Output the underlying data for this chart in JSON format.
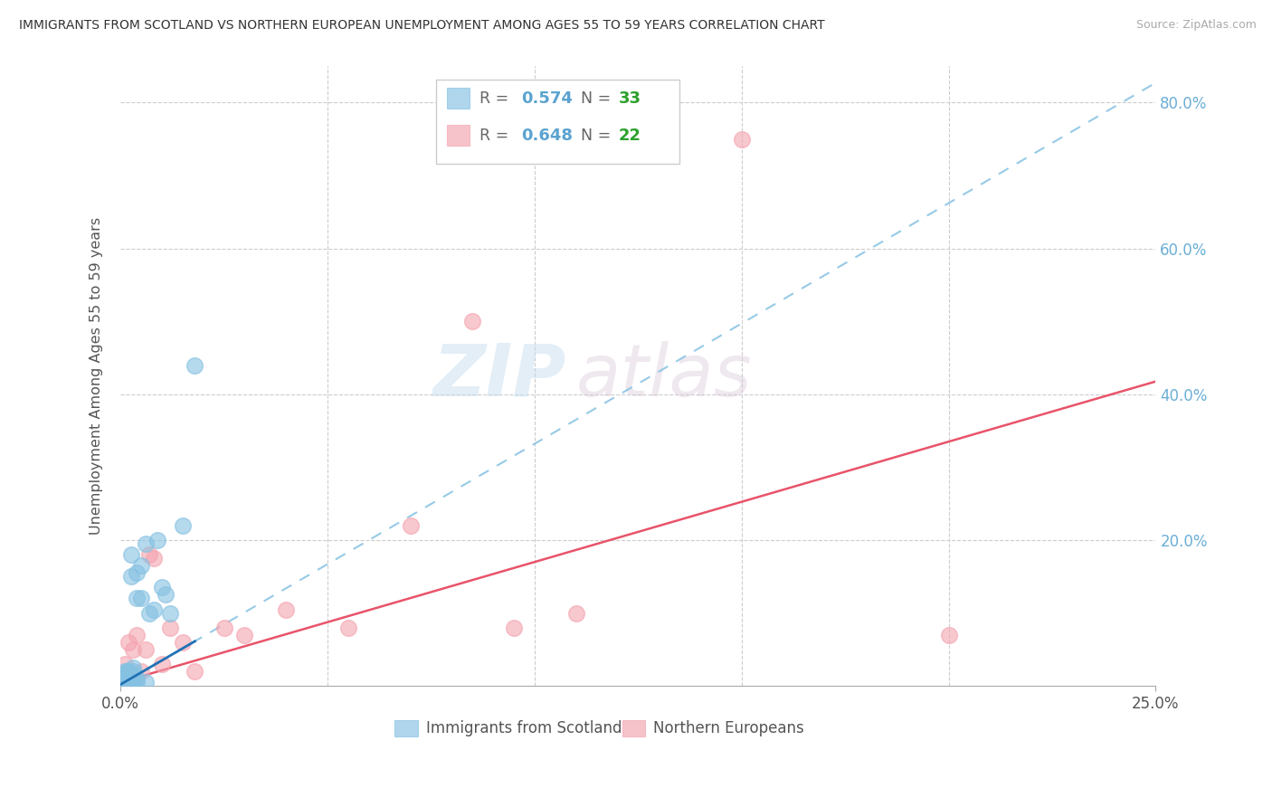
{
  "title": "IMMIGRANTS FROM SCOTLAND VS NORTHERN EUROPEAN UNEMPLOYMENT AMONG AGES 55 TO 59 YEARS CORRELATION CHART",
  "source": "Source: ZipAtlas.com",
  "ylabel": "Unemployment Among Ages 55 to 59 years",
  "xlim": [
    0,
    0.25
  ],
  "ylim": [
    0,
    0.85
  ],
  "ytick_vals": [
    0.0,
    0.2,
    0.4,
    0.6,
    0.8
  ],
  "ytick_labels": [
    "",
    "20.0%",
    "40.0%",
    "60.0%",
    "80.0%"
  ],
  "xtick_vals": [
    0.0,
    0.25
  ],
  "xtick_labels": [
    "0.0%",
    "25.0%"
  ],
  "legend_r1": "R = 0.574",
  "legend_n1": "N = 33",
  "legend_r2": "R = 0.648",
  "legend_n2": "N = 22",
  "scotland_color": "#85c1e2",
  "northern_color": "#f4a4b0",
  "scotland_trend_dashed_color": "#85c1e2",
  "scotland_trend_solid_color": "#2171b5",
  "northern_trend_color": "#e8546a",
  "watermark_zip": "ZIP",
  "watermark_atlas": "atlas",
  "minor_xticks": [
    0.05,
    0.1,
    0.15,
    0.2
  ],
  "scotland_x": [
    0.0005,
    0.001,
    0.001,
    0.001,
    0.0015,
    0.0015,
    0.002,
    0.002,
    0.002,
    0.002,
    0.0025,
    0.0025,
    0.003,
    0.003,
    0.003,
    0.003,
    0.003,
    0.004,
    0.004,
    0.004,
    0.004,
    0.005,
    0.005,
    0.006,
    0.006,
    0.007,
    0.008,
    0.009,
    0.01,
    0.011,
    0.012,
    0.015,
    0.018
  ],
  "scotland_y": [
    0.005,
    0.01,
    0.015,
    0.02,
    0.01,
    0.02,
    0.005,
    0.01,
    0.015,
    0.02,
    0.15,
    0.18,
    0.005,
    0.01,
    0.015,
    0.02,
    0.025,
    0.005,
    0.01,
    0.12,
    0.155,
    0.12,
    0.165,
    0.005,
    0.195,
    0.1,
    0.105,
    0.2,
    0.135,
    0.125,
    0.1,
    0.22,
    0.44
  ],
  "northern_x": [
    0.001,
    0.002,
    0.003,
    0.004,
    0.005,
    0.006,
    0.007,
    0.008,
    0.01,
    0.012,
    0.015,
    0.018,
    0.025,
    0.03,
    0.04,
    0.055,
    0.07,
    0.085,
    0.095,
    0.11,
    0.15,
    0.2
  ],
  "northern_y": [
    0.03,
    0.06,
    0.05,
    0.07,
    0.02,
    0.05,
    0.18,
    0.175,
    0.03,
    0.08,
    0.06,
    0.02,
    0.08,
    0.07,
    0.105,
    0.08,
    0.22,
    0.5,
    0.08,
    0.1,
    0.75,
    0.07
  ],
  "scotland_trend_slope": 3.3,
  "scotland_trend_intercept": 0.002,
  "northern_trend_slope": 1.65,
  "northern_trend_intercept": 0.005
}
